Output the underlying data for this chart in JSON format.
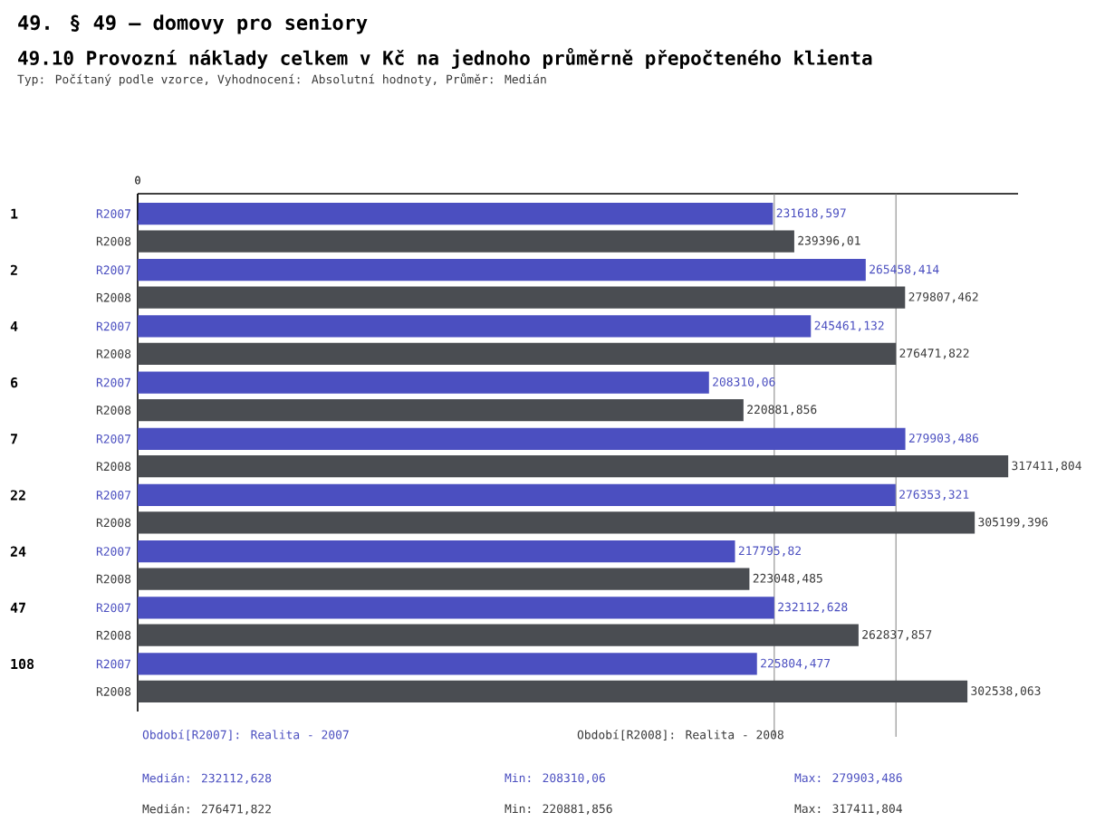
{
  "chart_data": {
    "type": "bar",
    "orientation": "horizontal",
    "title": "49. § 49 – domovy pro seniory",
    "subtitle": "49.10 Provozní náklady celkem v Kč na jednoho průměrně přepočteného klienta",
    "categories": [
      "1",
      "2",
      "4",
      "6",
      "7",
      "22",
      "24",
      "47",
      "108"
    ],
    "series": [
      {
        "name": "R2007",
        "color": "#4b4fc0",
        "values": [
          231618.597,
          265458.414,
          245461.132,
          208310.06,
          279903.486,
          276353.321,
          217795.82,
          232112.628,
          225804.477
        ],
        "value_labels": [
          "231618,597",
          "265458,414",
          "245461,132",
          "208310,06",
          "279903,486",
          "276353,321",
          "217795,82",
          "232112,628",
          "225804,477"
        ]
      },
      {
        "name": "R2008",
        "color": "#4a4d52",
        "values": [
          239396.01,
          279807.462,
          276471.822,
          220881.856,
          317411.804,
          305199.396,
          223048.485,
          262837.857,
          302538.063
        ],
        "value_labels": [
          "239396,01",
          "279807,462",
          "276471,822",
          "220881,856",
          "317411,804",
          "305199,396",
          "223048,485",
          "262837,857",
          "302538,063"
        ]
      }
    ],
    "xlim": [
      0,
      321000
    ],
    "ref_lines": [
      {
        "axis": "x",
        "value": 232112.628
      },
      {
        "axis": "x",
        "value": 276471.822
      }
    ],
    "annotations": [
      "Typ: Počítaný podle vzorce, Vyhodnocení: Absolutní hodnoty, Průměr: Medián",
      "Období[R2007]: Realita - 2007",
      "Období[R2008]: Realita - 2008",
      "Medián: 232112,628",
      "Min: 208310,06",
      "Max: 279903,486",
      "Medián: 276471,822",
      "Min: 220881,856",
      "Max: 317411,804",
      "0"
    ]
  }
}
